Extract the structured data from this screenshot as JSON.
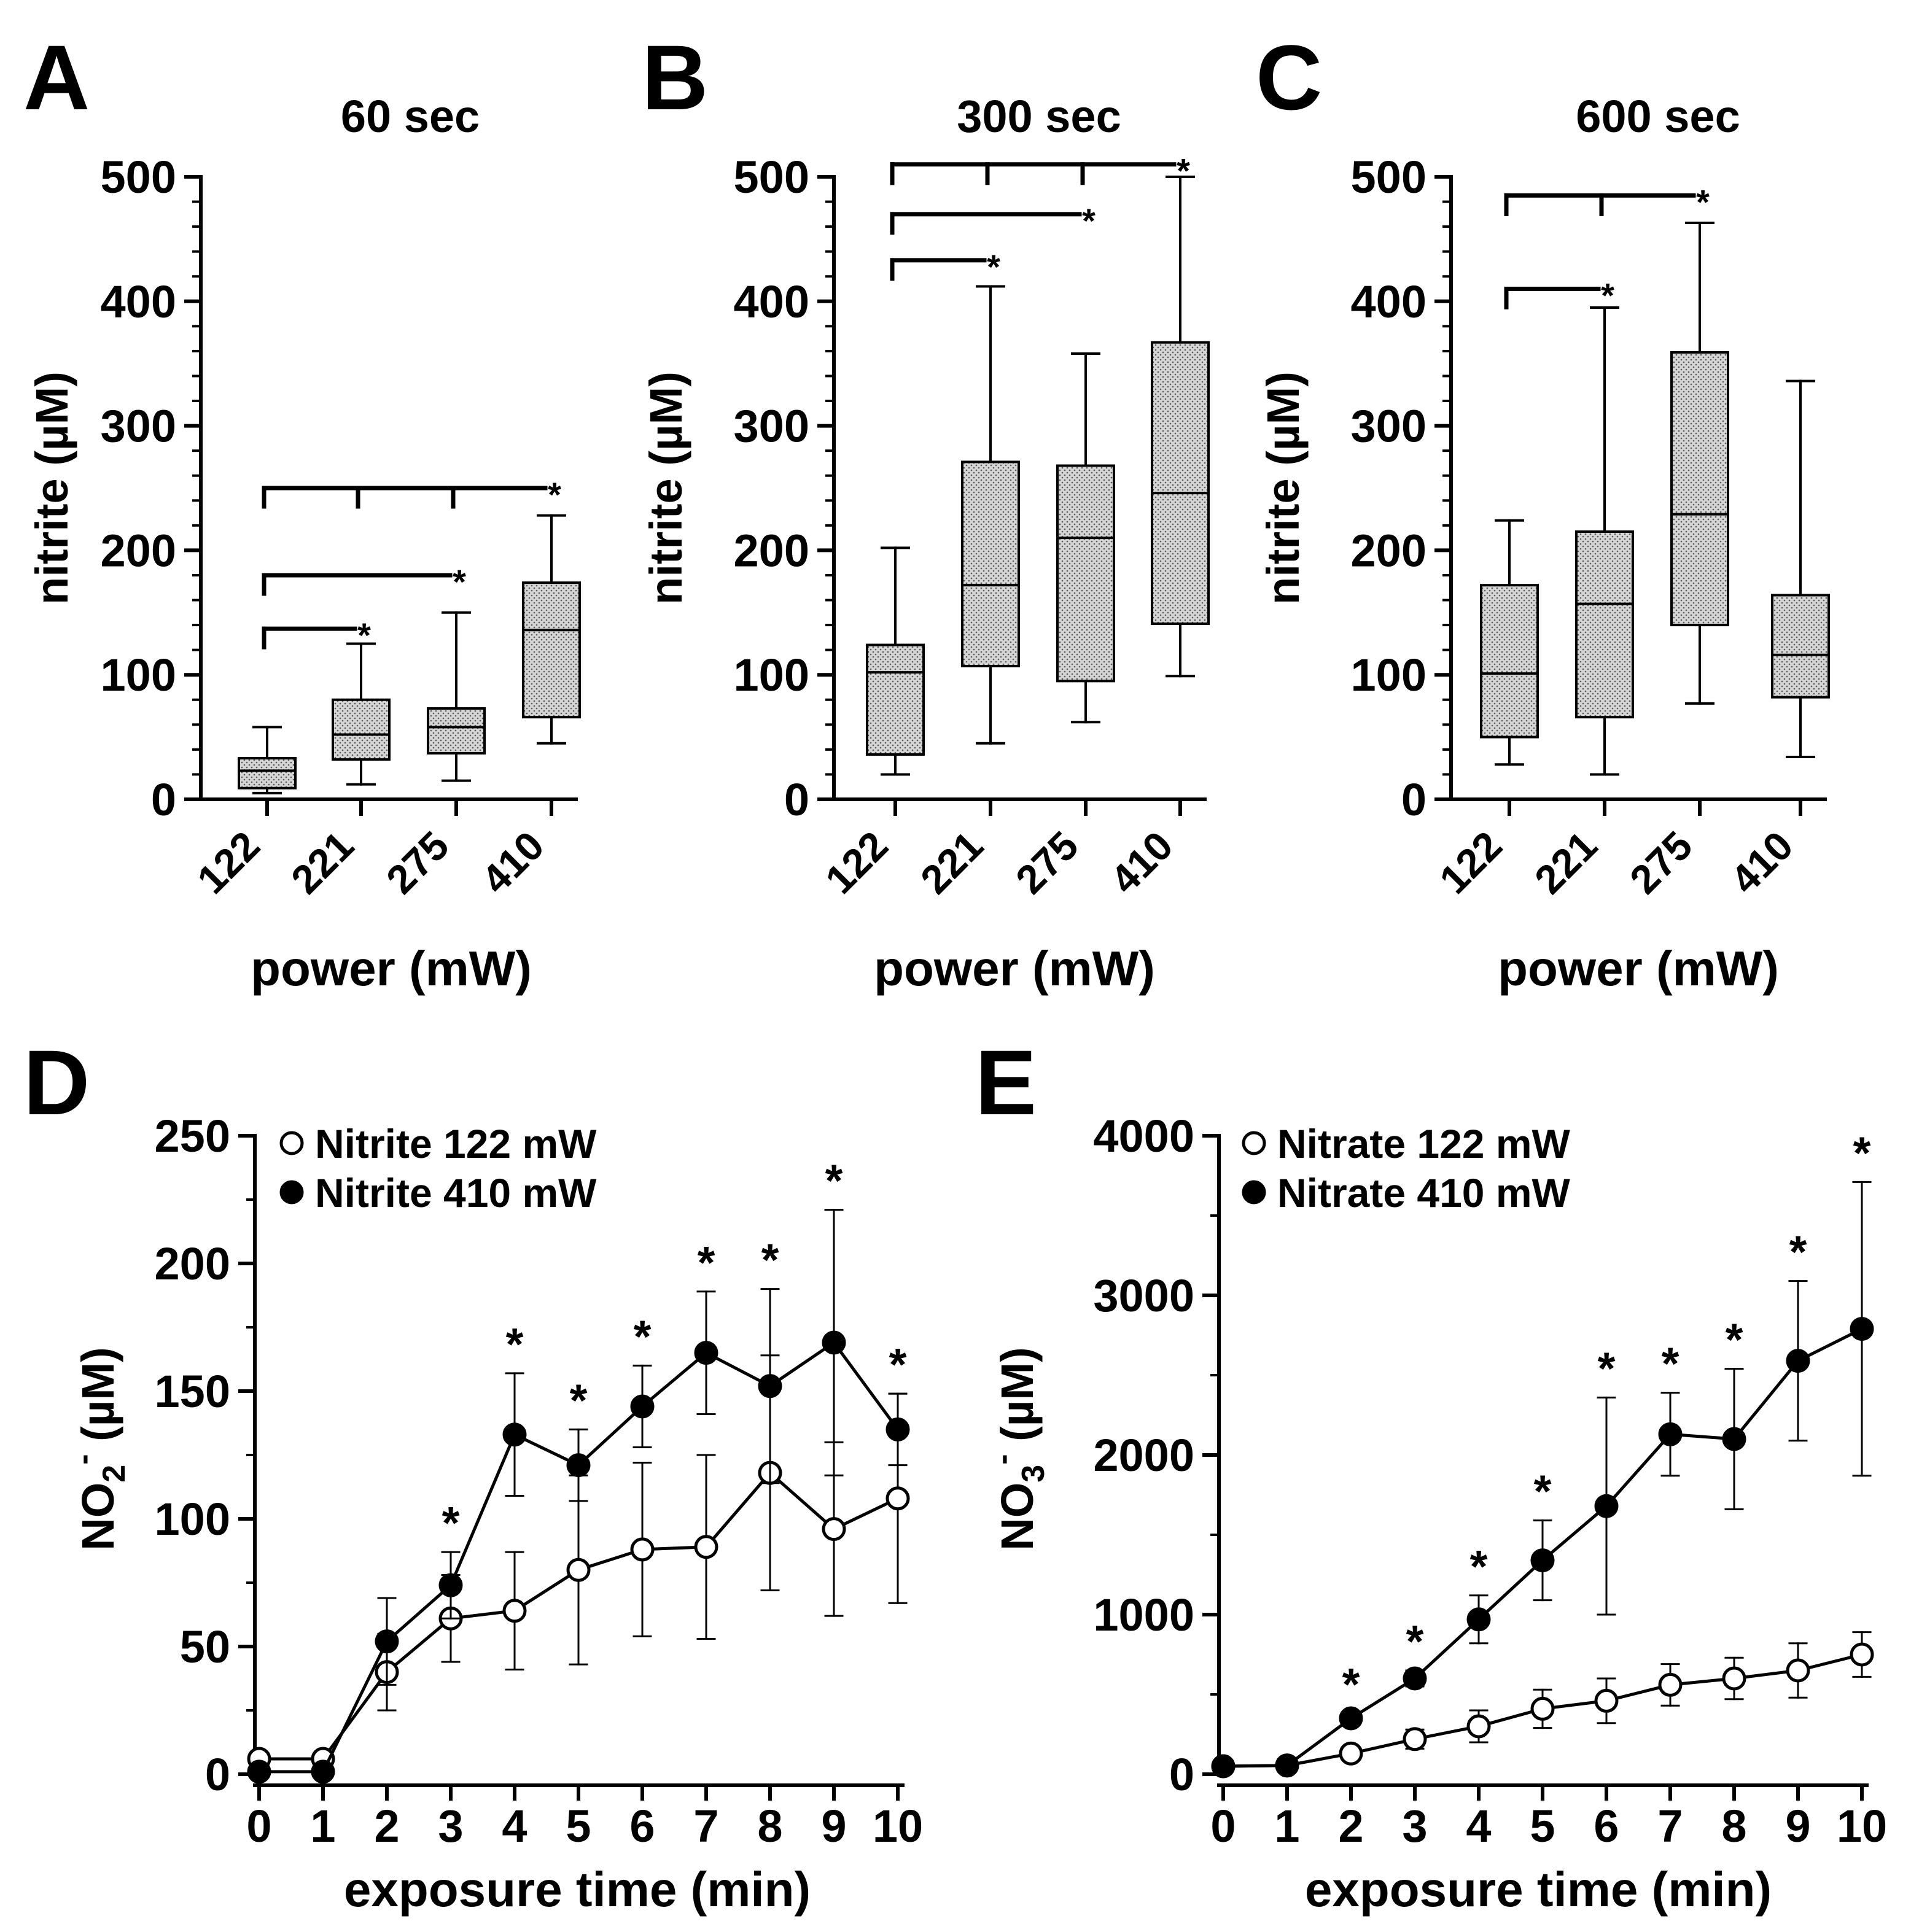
{
  "figure": {
    "colors": {
      "ink": "#000000",
      "box_fill": "#d2d2d2",
      "open_marker": "#ffffff"
    }
  },
  "chart_data": [
    {
      "panel": "A",
      "type": "box",
      "title": "60 sec",
      "xlabel": "power (mW)",
      "ylabel": "nitrite (µM)",
      "ylim": [
        0,
        500
      ],
      "yticks": [
        0,
        100,
        200,
        300,
        400,
        500
      ],
      "categories": [
        "122",
        "221",
        "275",
        "410"
      ],
      "boxes": [
        {
          "min": 5,
          "q1": 9,
          "median": 23,
          "q3": 33,
          "max": 58
        },
        {
          "min": 12,
          "q1": 32,
          "median": 52,
          "q3": 80,
          "max": 125
        },
        {
          "min": 15,
          "q1": 37,
          "median": 58,
          "q3": 73,
          "max": 150
        },
        {
          "min": 45,
          "q1": 66,
          "median": 136,
          "q3": 174,
          "max": 228
        }
      ],
      "significance": [
        {
          "from": "122",
          "to": "221",
          "label": "*",
          "level": 137
        },
        {
          "from": "122",
          "to": "275",
          "label": "*",
          "level": 180
        },
        {
          "from": "122",
          "to": "410",
          "label": "*",
          "level": 250,
          "ticks_at": [
            "122",
            "221",
            "275"
          ]
        }
      ]
    },
    {
      "panel": "B",
      "type": "box",
      "title": "300 sec",
      "xlabel": "power (mW)",
      "ylabel": "nitrite (µM)",
      "ylim": [
        0,
        500
      ],
      "yticks": [
        0,
        100,
        200,
        300,
        400,
        500
      ],
      "categories": [
        "122",
        "221",
        "275",
        "410"
      ],
      "boxes": [
        {
          "min": 20,
          "q1": 36,
          "median": 102,
          "q3": 124,
          "max": 202
        },
        {
          "min": 45,
          "q1": 107,
          "median": 172,
          "q3": 271,
          "max": 412
        },
        {
          "min": 62,
          "q1": 95,
          "median": 210,
          "q3": 268,
          "max": 358
        },
        {
          "min": 99,
          "q1": 141,
          "median": 246,
          "q3": 367,
          "max": 500
        }
      ],
      "significance": [
        {
          "from": "122",
          "to": "221",
          "label": "*",
          "level": 433
        },
        {
          "from": "122",
          "to": "275",
          "label": "*",
          "level": 470
        },
        {
          "from": "122",
          "to": "410",
          "label": "*",
          "level": 510,
          "ticks_at": [
            "122",
            "221",
            "275"
          ]
        }
      ]
    },
    {
      "panel": "C",
      "type": "box",
      "title": "600 sec",
      "xlabel": "power (mW)",
      "ylabel": "nitrite (µM)",
      "ylim": [
        0,
        500
      ],
      "yticks": [
        0,
        100,
        200,
        300,
        400,
        500
      ],
      "categories": [
        "122",
        "221",
        "275",
        "410"
      ],
      "boxes": [
        {
          "min": 28,
          "q1": 50,
          "median": 101,
          "q3": 172,
          "max": 224
        },
        {
          "min": 20,
          "q1": 66,
          "median": 157,
          "q3": 215,
          "max": 395
        },
        {
          "min": 77,
          "q1": 140,
          "median": 229,
          "q3": 359,
          "max": 463
        },
        {
          "min": 34,
          "q1": 82,
          "median": 116,
          "q3": 164,
          "max": 336
        }
      ],
      "significance": [
        {
          "from": "122",
          "to": "221",
          "label": "*",
          "level": 410
        },
        {
          "from": "122",
          "to": "275",
          "label": "*",
          "level": 485,
          "ticks_at": [
            "122",
            "221"
          ]
        }
      ]
    },
    {
      "panel": "D",
      "type": "line",
      "xlabel": "exposure time (min)",
      "ylabel": "NO2⁻ (µM)",
      "ylabel_parts": {
        "base": "NO",
        "sub": "2",
        "sup": "-",
        "unit": " (µM)"
      },
      "xlim": [
        0,
        10
      ],
      "ylim": [
        0,
        250
      ],
      "xticks": [
        0,
        1,
        2,
        3,
        4,
        5,
        6,
        7,
        8,
        9,
        10
      ],
      "yticks": [
        0,
        50,
        100,
        150,
        200,
        250
      ],
      "x": [
        0,
        1,
        2,
        3,
        4,
        5,
        6,
        7,
        8,
        9,
        10
      ],
      "series": [
        {
          "name": "Nitrite 122 mW",
          "marker": "open",
          "values": [
            6,
            6,
            40,
            61,
            64,
            80,
            88,
            89,
            118,
            96,
            108
          ],
          "errors": [
            0,
            0,
            15,
            17,
            23,
            37,
            34,
            36,
            46,
            34,
            41
          ]
        },
        {
          "name": "Nitrite 410 mW",
          "marker": "filled",
          "values": [
            1,
            1,
            52,
            74,
            133,
            121,
            144,
            165,
            152,
            169,
            135
          ],
          "errors": [
            0,
            0,
            17,
            13,
            24,
            14,
            16,
            24,
            38,
            52,
            14
          ]
        }
      ],
      "significance": [
        "",
        "",
        "",
        "*",
        "*",
        "*",
        "*",
        "*",
        "*",
        "*",
        "*"
      ]
    },
    {
      "panel": "E",
      "type": "line",
      "xlabel": "exposure time (min)",
      "ylabel": "NO3⁻ (µM)",
      "ylabel_parts": {
        "base": "NO",
        "sub": "3",
        "sup": "-",
        "unit": " (µM)"
      },
      "xlim": [
        0,
        10
      ],
      "ylim": [
        0,
        4000
      ],
      "xticks": [
        0,
        1,
        2,
        3,
        4,
        5,
        6,
        7,
        8,
        9,
        10
      ],
      "yticks": [
        0,
        1000,
        2000,
        3000,
        4000
      ],
      "x": [
        0,
        1,
        2,
        3,
        4,
        5,
        6,
        7,
        8,
        9,
        10
      ],
      "series": [
        {
          "name": "Nitrate 122 mW",
          "marker": "open",
          "values": [
            50,
            55,
            130,
            220,
            300,
            410,
            460,
            560,
            600,
            650,
            750
          ],
          "errors": [
            0,
            0,
            40,
            60,
            100,
            120,
            140,
            130,
            130,
            170,
            140
          ]
        },
        {
          "name": "Nitrate 410 mW",
          "marker": "filled",
          "values": [
            50,
            55,
            350,
            600,
            970,
            1340,
            1680,
            2130,
            2100,
            2590,
            2790
          ],
          "errors": [
            0,
            0,
            30,
            50,
            150,
            250,
            680,
            260,
            440,
            500,
            920
          ]
        }
      ],
      "significance": [
        "",
        "",
        "*",
        "*",
        "*",
        "*",
        "*",
        "*",
        "*",
        "*",
        "*"
      ]
    }
  ]
}
